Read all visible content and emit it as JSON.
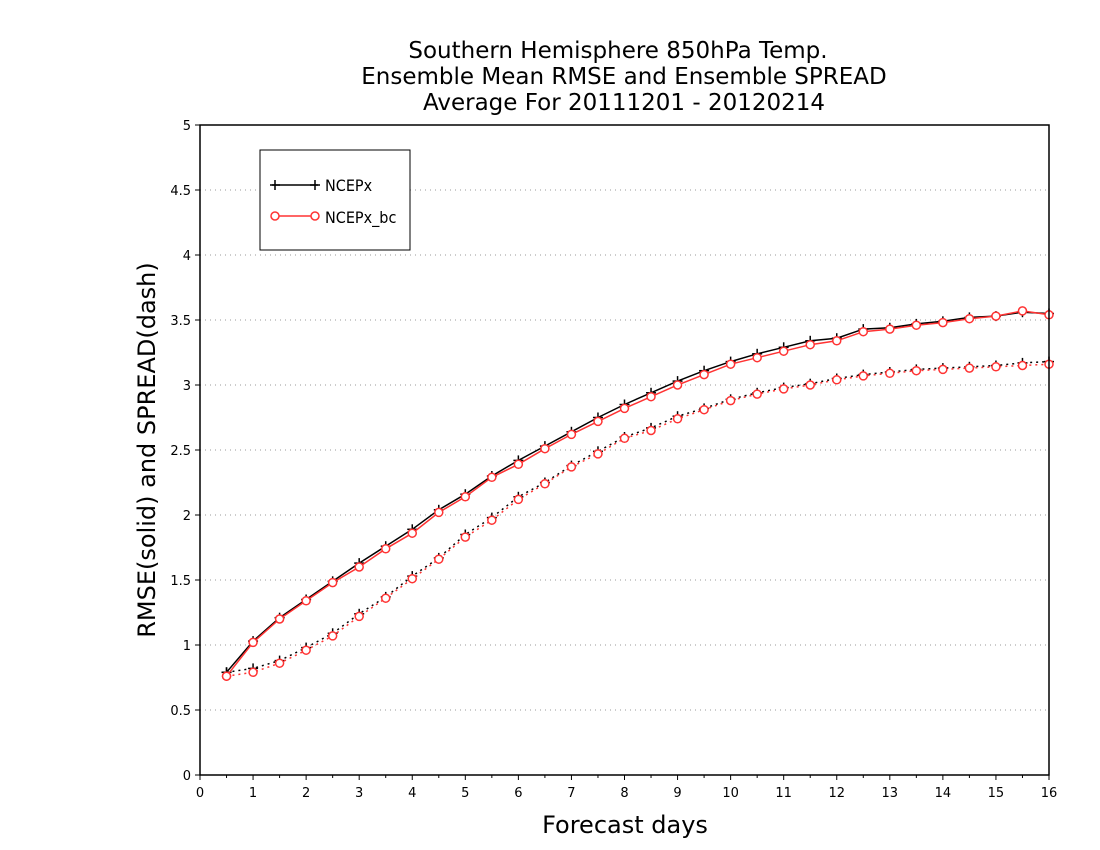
{
  "chart_data": {
    "type": "line",
    "title_lines": [
      "Southern Hemisphere 850hPa Temp.",
      "Ensemble Mean RMSE and Ensemble SPREAD",
      "Average For 20111201 - 20120214"
    ],
    "xlabel": "Forecast days",
    "ylabel": "RMSE(solid) and SPREAD(dash)",
    "xlim": [
      0,
      16
    ],
    "ylim": [
      0,
      5
    ],
    "x_ticks": [
      "0",
      "1",
      "2",
      "3",
      "4",
      "5",
      "6",
      "7",
      "8",
      "9",
      "10",
      "11",
      "12",
      "13",
      "14",
      "15",
      "16"
    ],
    "y_ticks": [
      "0",
      "0.5",
      "1",
      "1.5",
      "2",
      "2.5",
      "3",
      "3.5",
      "4",
      "4.5",
      "5"
    ],
    "grid": "horizontal-dotted",
    "legend_position": "top-left",
    "x": [
      0.5,
      1,
      1.5,
      2,
      2.5,
      3,
      3.5,
      4,
      4.5,
      5,
      5.5,
      6,
      6.5,
      7,
      7.5,
      8,
      8.5,
      9,
      9.5,
      10,
      10.5,
      11,
      11.5,
      12,
      12.5,
      13,
      13.5,
      14,
      14.5,
      15,
      15.5,
      16
    ],
    "series": [
      {
        "name": "NCEPx",
        "color": "#000000",
        "marker": "plus",
        "rmse": [
          0.79,
          1.03,
          1.21,
          1.35,
          1.49,
          1.63,
          1.76,
          1.89,
          2.04,
          2.16,
          2.3,
          2.42,
          2.53,
          2.64,
          2.75,
          2.85,
          2.94,
          3.03,
          3.11,
          3.18,
          3.24,
          3.29,
          3.34,
          3.36,
          3.43,
          3.44,
          3.47,
          3.49,
          3.52,
          3.53,
          3.56,
          3.55
        ],
        "spread": [
          0.79,
          0.82,
          0.88,
          0.98,
          1.09,
          1.24,
          1.37,
          1.53,
          1.67,
          1.85,
          1.98,
          2.14,
          2.25,
          2.38,
          2.49,
          2.6,
          2.67,
          2.76,
          2.82,
          2.89,
          2.94,
          2.98,
          3.01,
          3.05,
          3.08,
          3.1,
          3.12,
          3.13,
          3.14,
          3.15,
          3.17,
          3.18
        ]
      },
      {
        "name": "NCEPx_bc",
        "color": "#ff3333",
        "marker": "circle",
        "rmse": [
          0.76,
          1.02,
          1.2,
          1.34,
          1.48,
          1.6,
          1.74,
          1.86,
          2.02,
          2.14,
          2.29,
          2.39,
          2.51,
          2.62,
          2.72,
          2.82,
          2.91,
          3.0,
          3.08,
          3.16,
          3.21,
          3.26,
          3.31,
          3.34,
          3.41,
          3.43,
          3.46,
          3.48,
          3.51,
          3.53,
          3.57,
          3.54
        ],
        "spread": [
          0.76,
          0.79,
          0.86,
          0.96,
          1.07,
          1.22,
          1.36,
          1.51,
          1.66,
          1.83,
          1.96,
          2.12,
          2.24,
          2.37,
          2.47,
          2.59,
          2.65,
          2.74,
          2.81,
          2.88,
          2.93,
          2.97,
          3.0,
          3.04,
          3.07,
          3.09,
          3.11,
          3.12,
          3.13,
          3.14,
          3.15,
          3.16
        ]
      }
    ]
  }
}
